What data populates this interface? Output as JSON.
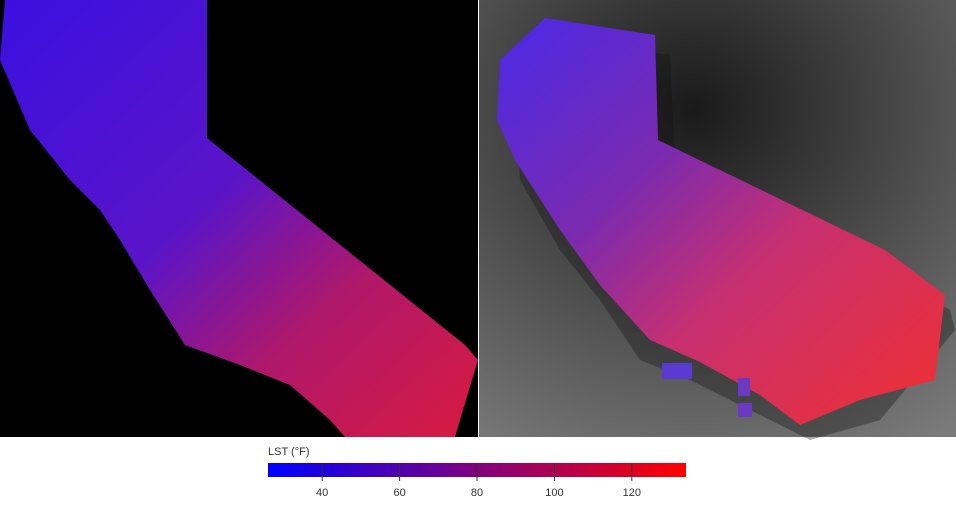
{
  "colorbar": {
    "title": "LST (°F)",
    "range": [
      26,
      134
    ],
    "ticks": [
      40,
      60,
      80,
      100,
      120
    ],
    "colors": [
      "#0000ff",
      "#ff0000"
    ]
  }
}
